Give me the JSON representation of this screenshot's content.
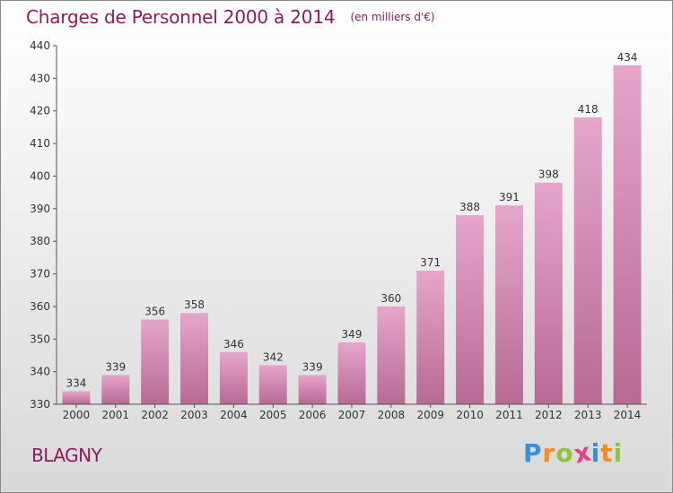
{
  "header": {
    "title": "Charges de Personnel 2000 à 2014",
    "unit_note": "(en milliers d'€)"
  },
  "commune": "BLAGNY",
  "brand": {
    "letters": [
      "P",
      "r",
      "o",
      "x",
      "i",
      "t",
      "i"
    ],
    "colors": [
      "#3a8fd9",
      "#f28c1e",
      "#8cc63f",
      "#e63c8c",
      "#3a8fd9",
      "#f28c1e",
      "#8cc63f"
    ]
  },
  "colors": {
    "bar_top": "#e6a6cc",
    "bar_bottom": "#b66a94",
    "title": "#8b1d5c"
  },
  "chart_data": {
    "type": "bar",
    "title": "Charges de Personnel 2000 à 2014",
    "subtitle": "(en milliers d'€)",
    "categories": [
      "2000",
      "2001",
      "2002",
      "2003",
      "2004",
      "2005",
      "2006",
      "2007",
      "2008",
      "2009",
      "2010",
      "2011",
      "2012",
      "2013",
      "2014"
    ],
    "values": [
      334,
      339,
      356,
      358,
      346,
      342,
      339,
      349,
      360,
      371,
      388,
      391,
      398,
      418,
      434
    ],
    "ylim": [
      330,
      440
    ],
    "yticks": [
      330,
      340,
      350,
      360,
      370,
      380,
      390,
      400,
      410,
      420,
      430,
      440
    ],
    "xlabel": "",
    "ylabel": "",
    "grid": false,
    "legend": "none"
  }
}
